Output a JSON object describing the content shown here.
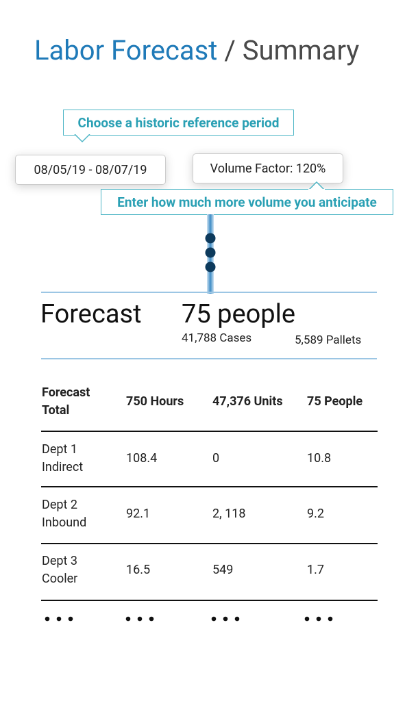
{
  "header": {
    "title": "Labor Forecast",
    "separator": "/",
    "subtitle": "Summary"
  },
  "inputs": {
    "date_tip": "Choose a historic reference period",
    "date_range": "08/05/19 - 08/07/19",
    "volume_factor": "Volume Factor: 120%",
    "volume_tip": "Enter how much more volume you anticipate"
  },
  "forecast": {
    "label": "Forecast",
    "people": "75 people",
    "cases": "41,788 Cases",
    "pallets": "5,589 Pallets"
  },
  "table": {
    "header": [
      "Forecast Total",
      "750 Hours",
      "47,376 Units",
      "75 People"
    ],
    "rows": [
      [
        "Dept 1 Indirect",
        "108.4",
        "0",
        "10.8"
      ],
      [
        "Dept 2 Inbound",
        "92.1",
        "2, 118",
        "9.2"
      ],
      [
        "Dept 3 Cooler",
        "16.5",
        "549",
        "1.7"
      ]
    ]
  }
}
